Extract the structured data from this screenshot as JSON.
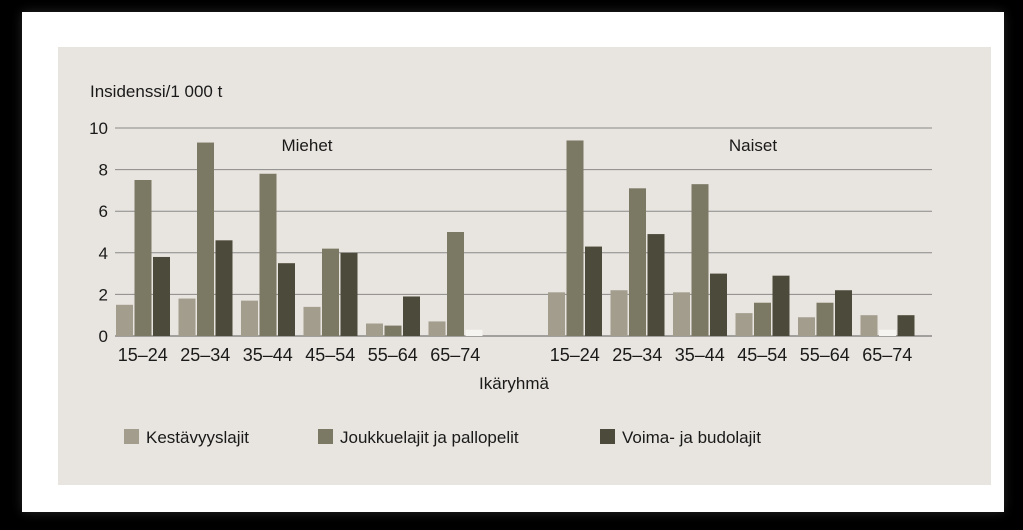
{
  "colors": {
    "panel_background": "#e8e4df",
    "gridline": "#8a8a8a",
    "series": [
      "#a39d8e",
      "#7b7864",
      "#4c4a3a"
    ]
  },
  "chart_data": {
    "type": "bar",
    "ylabel": "Insidenssi/1 000 t",
    "xlabel": "Ikäryhmä",
    "ylim": [
      0,
      10
    ],
    "yticks": [
      0,
      2,
      4,
      6,
      8,
      10
    ],
    "grid": true,
    "legend_position": "bottom",
    "groups": [
      {
        "label": "Miehet",
        "categories": [
          "15–24",
          "25–34",
          "35–44",
          "45–54",
          "55–64",
          "65–74"
        ]
      },
      {
        "label": "Naiset",
        "categories": [
          "15–24",
          "25–34",
          "35–44",
          "45–54",
          "55–64",
          "65–74"
        ]
      }
    ],
    "series": [
      {
        "name": "Kestävyyslajit",
        "values": [
          [
            1.5,
            1.8,
            1.7,
            1.4,
            0.6,
            0.7
          ],
          [
            2.1,
            2.2,
            2.1,
            1.1,
            0.9,
            1.0
          ]
        ]
      },
      {
        "name": "Joukkuelajit ja pallopelit",
        "values": [
          [
            7.5,
            9.3,
            7.8,
            4.2,
            0.5,
            5.0
          ],
          [
            9.4,
            7.1,
            7.3,
            1.6,
            1.6,
            0.3
          ]
        ]
      },
      {
        "name": "Voima- ja budolajit",
        "values": [
          [
            3.8,
            4.6,
            3.5,
            4.0,
            1.9,
            0.3
          ],
          [
            4.3,
            4.9,
            3.0,
            2.9,
            2.2,
            1.0
          ]
        ]
      }
    ]
  }
}
